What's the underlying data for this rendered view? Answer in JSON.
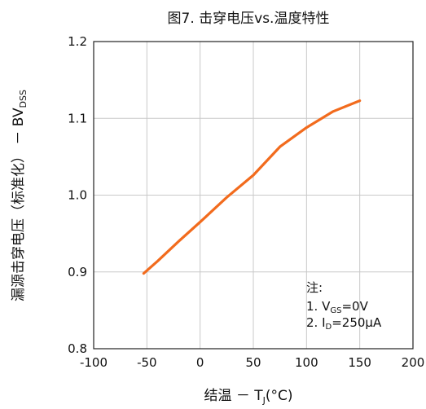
{
  "chart_data": {
    "type": "line",
    "title": "图7. 击穿电压vs.温度特性",
    "xlabel": {
      "main": "结温 － T",
      "sub": "J",
      "suffix": "(°C)"
    },
    "ylabel": {
      "main": "漏源击穿电压（标准化） － BV",
      "sub": "DSS"
    },
    "xlim": [
      -100,
      200
    ],
    "ylim": [
      0.8,
      1.2
    ],
    "x_ticks": [
      "-100",
      "-50",
      "0",
      "50",
      "100",
      "150",
      "200"
    ],
    "y_ticks": [
      "0.8",
      "0.9",
      "1.0",
      "1.1",
      "1.2"
    ],
    "grid": true,
    "line_color": "#f26b1d",
    "series": [
      {
        "x": [
          -53,
          -40,
          -20,
          0,
          25,
          50,
          75,
          100,
          125,
          150
        ],
        "y": [
          0.898,
          0.914,
          0.94,
          0.965,
          0.997,
          1.026,
          1.063,
          1.088,
          1.109,
          1.123
        ]
      }
    ],
    "annotation": {
      "heading": "注:",
      "lines": [
        {
          "prefix": "1. V",
          "sub": "GS",
          "suffix": "=0V"
        },
        {
          "prefix": "2. I",
          "sub": "D",
          "suffix": "=250μA"
        }
      ]
    }
  }
}
